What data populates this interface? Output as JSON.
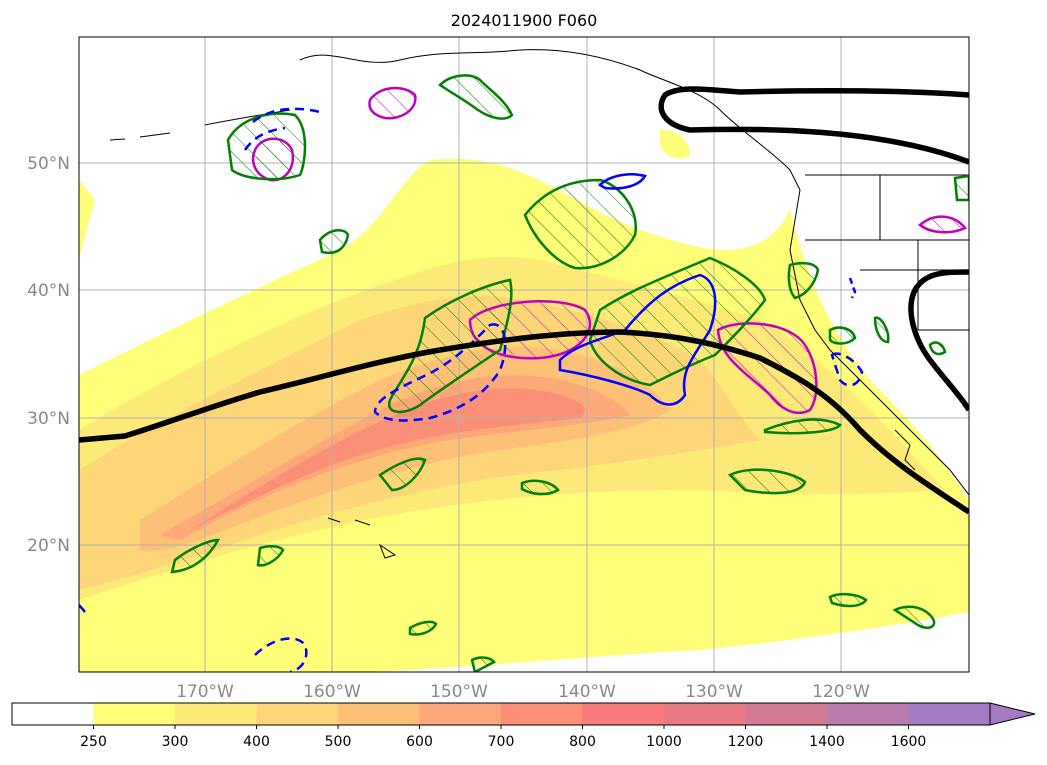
{
  "title": "2024011900 F060",
  "lat_labels": [
    "50°N",
    "40°N",
    "30°N",
    "20°N"
  ],
  "lon_labels": [
    "170°W",
    "160°W",
    "150°W",
    "140°W",
    "130°W",
    "120°W"
  ],
  "colorbar": {
    "ticks": [
      "250",
      "300",
      "400",
      "500",
      "600",
      "700",
      "800",
      "1000",
      "1200",
      "1400",
      "1600"
    ],
    "colors": [
      "#ffffff",
      "#fefe78",
      "#fde977",
      "#fdd678",
      "#fdc077",
      "#fda878",
      "#fc8f78",
      "#f67a79",
      "#e87a84",
      "#d27a93",
      "#b97aad",
      "#a47ac3"
    ],
    "extend": "max"
  },
  "overlay_colors": {
    "jet_axis": "#000000",
    "green_contour": "#008000",
    "blue_contour": "#0000ff",
    "magenta_contour": "#c000c0"
  }
}
